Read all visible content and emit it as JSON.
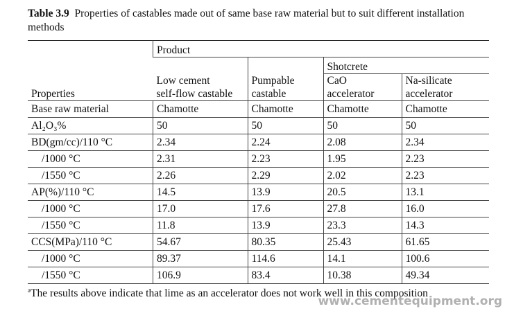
{
  "caption": {
    "label": "Table 3.9",
    "text": "Properties of castables made out of same base raw material but to suit different installation methods"
  },
  "table": {
    "header": {
      "stub": "Properties",
      "group": "Product",
      "subgroup": "Shotcrete",
      "columns": [
        [
          "Low cement",
          "self-flow castable"
        ],
        [
          "Pumpable",
          "castable"
        ],
        [
          "CaO",
          "accelerator"
        ],
        [
          "Na-silicate",
          "accelerator"
        ]
      ]
    },
    "rows": [
      [
        "Base raw material",
        "Chamotte",
        "Chamotte",
        "Chamotte",
        "Chamotte"
      ],
      [
        "Al₂O₃%",
        "50",
        "50",
        "50",
        "50"
      ],
      [
        "BD(gm/cc)/110 °C",
        "2.34",
        "2.24",
        "2.08",
        "2.34"
      ],
      [
        "/1000 °C",
        "2.31",
        "2.23",
        "1.95",
        "2.23"
      ],
      [
        "/1550 °C",
        "2.26",
        "2.29",
        "2.02",
        "2.23"
      ],
      [
        "AP(%)/110 °C",
        "14.5",
        "13.9",
        "20.5",
        "13.1"
      ],
      [
        "/1000 °C",
        "17.0",
        "17.6",
        "27.8",
        "16.0"
      ],
      [
        "/1550 °C",
        "11.8",
        "13.9",
        "23.3",
        "14.3"
      ],
      [
        "CCS(MPa)/110 °C",
        "54.67",
        "80.35",
        "25.43",
        "61.65"
      ],
      [
        "/1000 °C",
        "89.37",
        "114.6",
        "14.1",
        "100.6"
      ],
      [
        "/1550 °C",
        "106.9",
        "83.4",
        "10.38",
        "49.34"
      ]
    ]
  },
  "footnote": {
    "mark": "a",
    "text": "The results above indicate that lime as an accelerator does not work well in this composition"
  },
  "watermark": "www.cementequipment.org"
}
